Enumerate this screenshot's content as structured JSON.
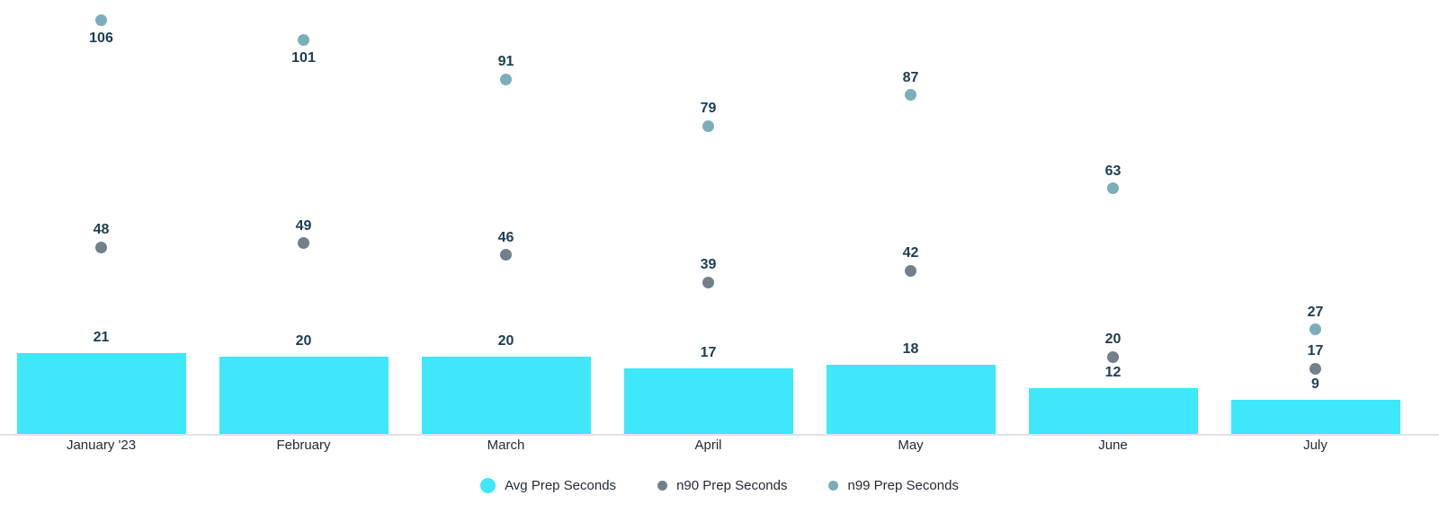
{
  "chart_data": {
    "type": "bar",
    "title": "",
    "xlabel": "",
    "ylabel": "",
    "categories": [
      "January '23",
      "February",
      "March",
      "April",
      "May",
      "June",
      "July"
    ],
    "series": [
      {
        "name": "Avg Prep Seconds",
        "type": "bar",
        "color": "#3EE7FA",
        "values": [
          21,
          20,
          20,
          17,
          18,
          12,
          9
        ]
      },
      {
        "name": "n90 Prep Seconds",
        "type": "scatter",
        "color": "#72808C",
        "values": [
          48,
          49,
          46,
          39,
          42,
          20,
          17
        ]
      },
      {
        "name": "n99 Prep Seconds",
        "type": "scatter",
        "color": "#7AAFBA",
        "values": [
          106,
          101,
          91,
          79,
          87,
          63,
          27
        ]
      }
    ],
    "ylim": [
      0,
      110
    ],
    "grid": false,
    "y_axis_visible": false,
    "value_labels": true,
    "legend_position": "bottom",
    "colors": {
      "value_label_text": "#1C3D52",
      "axis_label_text": "#222B36",
      "legend_text": "#222B36",
      "axis_line": "#E1E2E8",
      "background": "#FFFFFF"
    }
  }
}
